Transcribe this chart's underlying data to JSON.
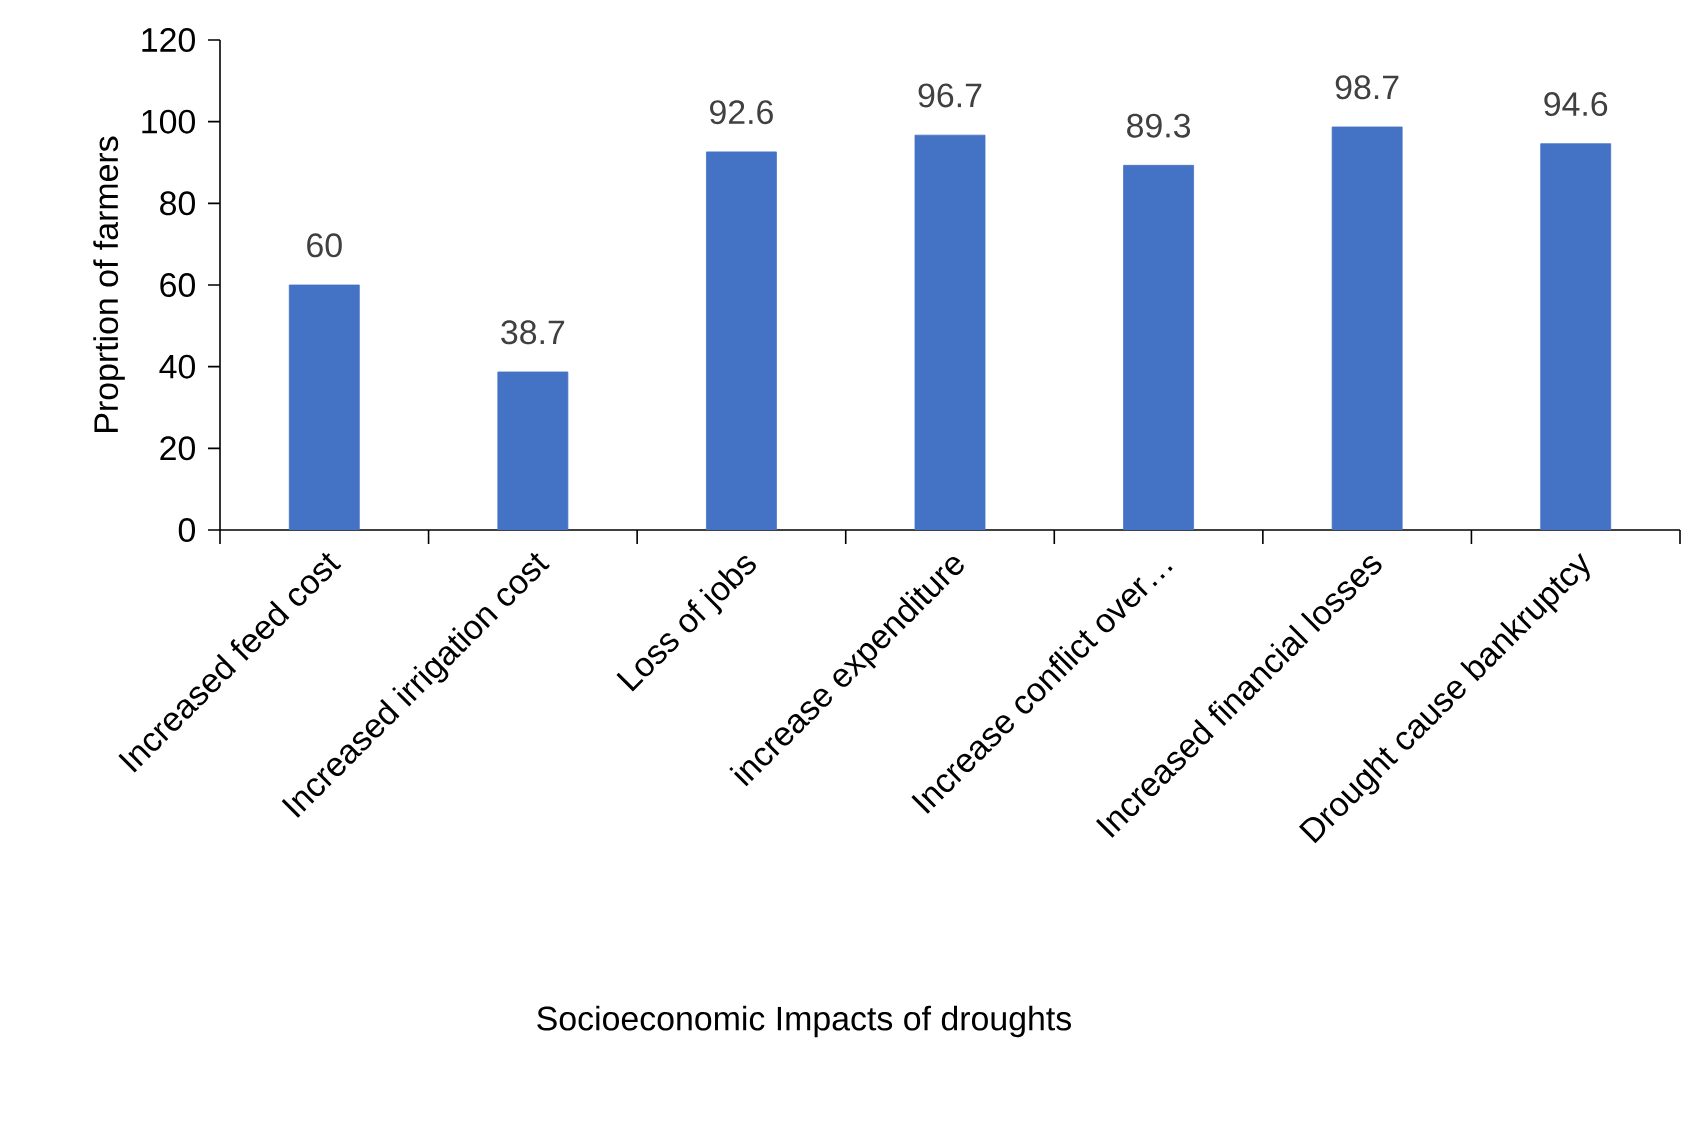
{
  "chart_data": {
    "type": "bar",
    "xlabel": "Socioeconomic Impacts of droughts",
    "ylabel": "Proprtion of farmers",
    "categories": [
      "Increased feed cost",
      "Increased irrigation cost",
      "Loss of jobs",
      "increase expenditure",
      "Increase conflict over…",
      "Increased financial losses",
      "Drought cause bankruptcy"
    ],
    "values": [
      60,
      38.7,
      92.6,
      96.7,
      89.3,
      98.7,
      94.6
    ],
    "color": "#4472c4",
    "ylim": [
      0,
      120
    ],
    "yticks": [
      0,
      20,
      40,
      60,
      80,
      100,
      120
    ],
    "grid": false,
    "data_labels": true
  }
}
